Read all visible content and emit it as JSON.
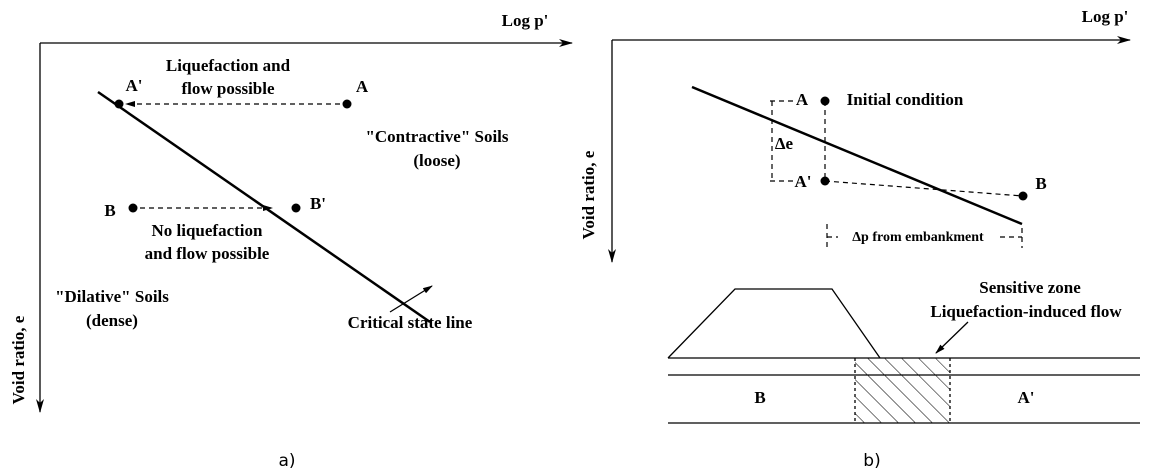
{
  "panel_a": {
    "x_axis_label": "Log p'",
    "y_axis_label": "Void ratio, e",
    "point_A_prime": "A'",
    "point_A": "A",
    "point_B": "B",
    "point_B_prime": "B'",
    "annotation_liquefaction": [
      "Liquefaction and",
      "flow possible"
    ],
    "annotation_no_liquefaction": [
      "No liquefaction",
      "and flow possible"
    ],
    "region_contractive": [
      "\"Contractive\" Soils",
      "(loose)"
    ],
    "region_dilative": [
      "\"Dilative\" Soils",
      "(dense)"
    ],
    "line_label": "Critical state line",
    "caption": "a)"
  },
  "panel_b": {
    "x_axis_label": "Log p'",
    "y_axis_label": "Void ratio, e",
    "point_A": "A",
    "initial_condition": "Initial condition",
    "delta_e": "Δe",
    "point_A_prime": "A'",
    "point_B": "B",
    "delta_p": "Δp from embankment",
    "sensitive_zone": "Sensitive zone",
    "flow_label": "Liquefaction-induced flow",
    "ground_B": "B",
    "ground_A_prime": "A'",
    "caption": "b)"
  }
}
